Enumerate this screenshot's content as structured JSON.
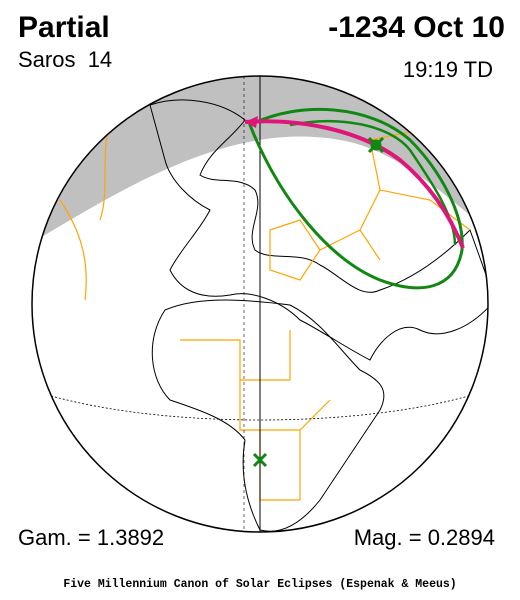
{
  "header": {
    "title": "Partial",
    "date": "-1234 Oct 10",
    "saros": "Saros  14",
    "time": "19:19 TD"
  },
  "footer": {
    "gamma": "Gam. = 1.3892",
    "magnitude": "Mag. = 0.2894",
    "credit": "Five Millennium Canon of Solar Eclipses (Espenak & Meeus)"
  }
}
